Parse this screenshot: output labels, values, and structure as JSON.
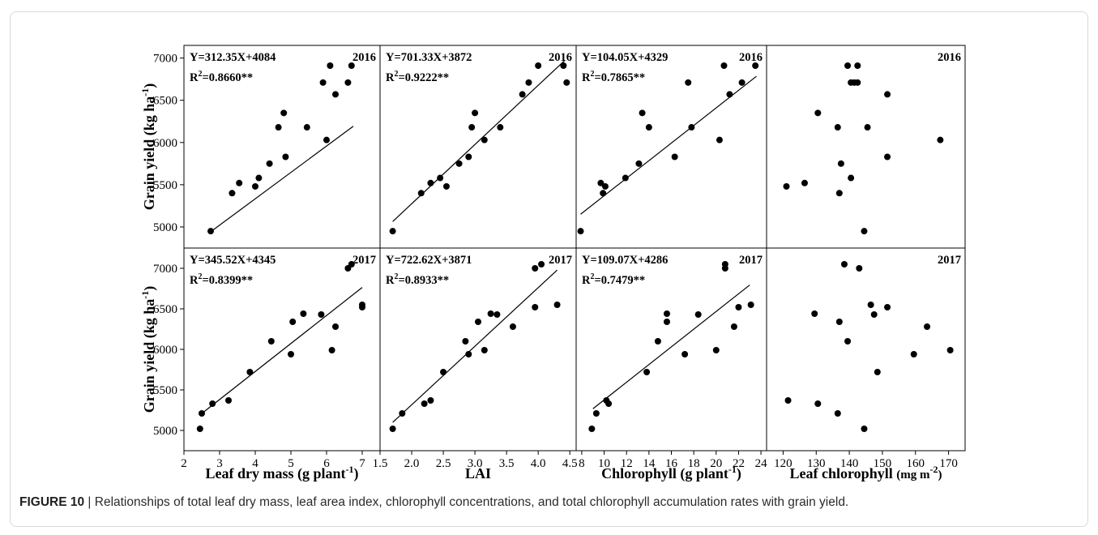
{
  "figure": {
    "caption_label": "FIGURE 10",
    "caption_separator": " | ",
    "caption_text": "Relationships of total leaf dry mass, leaf area index, chlorophyll concentrations, and total chlorophyll accumulation rates with grain yield."
  },
  "chart_data": [
    {
      "type": "scatter",
      "panel": "Leaf dry mass 2016",
      "year": "2016",
      "xlabel": "Leaf dry mass (g plant-1)",
      "ylabel": "Grain yield (kg ha-1)",
      "xlim": [
        2,
        7.5
      ],
      "ylim": [
        4750,
        7150
      ],
      "equation": "Y=312.35X+4084",
      "r2": "R2=0.8660**",
      "fit": {
        "slope": 312.35,
        "intercept": 4084,
        "x_range": [
          2.75,
          6.75
        ]
      },
      "x": [
        2.75,
        3.35,
        3.55,
        4.0,
        4.1,
        4.4,
        4.65,
        4.8,
        4.85,
        5.45,
        5.9,
        6.0,
        6.1,
        6.25,
        6.6,
        6.7
      ],
      "y": [
        4950,
        5400,
        5520,
        5480,
        5580,
        5750,
        6180,
        6350,
        5830,
        6180,
        6710,
        6030,
        6910,
        6570,
        6710,
        6910
      ]
    },
    {
      "type": "scatter",
      "panel": "LAI 2016",
      "year": "2016",
      "xlabel": "LAI",
      "ylabel": "Grain yield (kg ha-1)",
      "xlim": [
        1.5,
        4.6
      ],
      "ylim": [
        4750,
        7150
      ],
      "equation": "Y=701.33X+3872",
      "r2": "R2=0.9222**",
      "fit": {
        "slope": 701.33,
        "intercept": 3872,
        "x_range": [
          1.7,
          4.42
        ]
      },
      "x": [
        1.7,
        2.15,
        2.3,
        2.45,
        2.55,
        2.75,
        2.9,
        2.95,
        3.0,
        3.15,
        3.4,
        3.75,
        3.85,
        4.0,
        4.4,
        4.45
      ],
      "y": [
        4950,
        5400,
        5520,
        5580,
        5480,
        5750,
        5830,
        6180,
        6350,
        6030,
        6180,
        6570,
        6710,
        6910,
        6910,
        6710
      ]
    },
    {
      "type": "scatter",
      "panel": "Chlorophyll 2016",
      "year": "2016",
      "xlabel": "Chlorophyll (g plant-1)",
      "ylabel": "Grain yield (kg ha-1)",
      "xlim": [
        7.5,
        24.5
      ],
      "ylim": [
        4750,
        7150
      ],
      "equation": "Y=104.05X+4329",
      "r2": "R2=0.7865**",
      "fit": {
        "slope": 104.05,
        "intercept": 4329,
        "x_range": [
          7.9,
          23.6
        ]
      },
      "x": [
        7.9,
        9.7,
        9.9,
        10.1,
        11.9,
        13.1,
        13.4,
        14.0,
        16.3,
        17.5,
        17.8,
        20.3,
        20.7,
        21.2,
        22.3,
        23.5
      ],
      "y": [
        4950,
        5520,
        5400,
        5480,
        5580,
        5750,
        6350,
        6180,
        5830,
        6710,
        6180,
        6030,
        6910,
        6570,
        6710,
        6910
      ]
    },
    {
      "type": "scatter",
      "panel": "Leaf chlorophyll 2016",
      "year": "2016",
      "xlabel": "Leaf chlorophyll (mg m-2)",
      "ylabel": "Grain yield (kg ha-1)",
      "xlim": [
        115,
        175
      ],
      "ylim": [
        4750,
        7150
      ],
      "x": [
        121,
        126.5,
        130.5,
        136.5,
        137,
        137.5,
        139.5,
        140.5,
        140.5,
        141.5,
        142.5,
        142.5,
        144.5,
        145.5,
        151.5,
        151.5,
        167.5
      ],
      "y": [
        5480,
        5520,
        6350,
        6180,
        5400,
        5750,
        6910,
        5580,
        6710,
        6710,
        6910,
        6710,
        4950,
        6180,
        6570,
        5830,
        6030
      ]
    },
    {
      "type": "scatter",
      "panel": "Leaf dry mass 2017",
      "year": "2017",
      "xlabel": "Leaf dry mass (g plant-1)",
      "ylabel": "Grain yield (kg ha-1)",
      "xlim": [
        2,
        7.5
      ],
      "ylim": [
        4750,
        7250
      ],
      "equation": "Y=345.52X+4345",
      "r2": "R2=0.8399**",
      "fit": {
        "slope": 345.52,
        "intercept": 4345,
        "x_range": [
          2.45,
          7.0
        ]
      },
      "x": [
        2.45,
        2.5,
        2.8,
        3.25,
        3.85,
        4.45,
        5.0,
        5.05,
        5.35,
        5.85,
        6.15,
        6.25,
        6.6,
        6.7,
        7.0,
        7.0
      ],
      "y": [
        5020,
        5210,
        5330,
        5370,
        5720,
        6100,
        5940,
        6340,
        6440,
        6430,
        5990,
        6280,
        7000,
        7050,
        6550,
        6520
      ]
    },
    {
      "type": "scatter",
      "panel": "LAI 2017",
      "year": "2017",
      "xlabel": "LAI",
      "ylabel": "Grain yield (kg ha-1)",
      "xlim": [
        1.5,
        4.6
      ],
      "ylim": [
        4750,
        7250
      ],
      "equation": "Y=722.62X+3871",
      "r2": "R2=0.8933**",
      "fit": {
        "slope": 722.62,
        "intercept": 3871,
        "x_range": [
          1.7,
          4.3
        ]
      },
      "x": [
        1.7,
        1.85,
        2.2,
        2.3,
        2.5,
        2.85,
        2.9,
        3.05,
        3.15,
        3.25,
        3.35,
        3.6,
        3.95,
        3.95,
        4.05,
        4.3
      ],
      "y": [
        5020,
        5210,
        5330,
        5370,
        5720,
        6100,
        5940,
        6340,
        5990,
        6440,
        6430,
        6280,
        7000,
        6520,
        7050,
        6550
      ]
    },
    {
      "type": "scatter",
      "panel": "Chlorophyll 2017",
      "year": "2017",
      "xlabel": "Chlorophyll (g plant-1)",
      "ylabel": "Grain yield (kg ha-1)",
      "xlim": [
        7.5,
        24.5
      ],
      "ylim": [
        4750,
        7250
      ],
      "equation": "Y=109.07X+4286",
      "r2": "R2=0.7479**",
      "fit": {
        "slope": 109.07,
        "intercept": 4286,
        "x_range": [
          9.0,
          23.0
        ]
      },
      "x": [
        8.9,
        9.3,
        10.2,
        10.4,
        13.8,
        14.8,
        15.6,
        15.6,
        17.2,
        18.4,
        20.0,
        20.8,
        20.8,
        21.6,
        22.0,
        23.1
      ],
      "y": [
        5020,
        5210,
        5370,
        5330,
        5720,
        6100,
        6440,
        6340,
        5940,
        6430,
        5990,
        7000,
        7050,
        6280,
        6520,
        6550
      ]
    },
    {
      "type": "scatter",
      "panel": "Leaf chlorophyll 2017",
      "year": "2017",
      "xlabel": "Leaf chlorophyll (mg m-2)",
      "ylabel": "Grain yield (kg ha-1)",
      "xlim": [
        115,
        175
      ],
      "ylim": [
        4750,
        7250
      ],
      "x": [
        121.5,
        129.5,
        130.5,
        136.5,
        137,
        138.5,
        139.5,
        143,
        144.5,
        146.5,
        147.5,
        148.5,
        151.5,
        159.5,
        163.5,
        170.5
      ],
      "y": [
        5370,
        6440,
        5330,
        5210,
        6340,
        7050,
        6100,
        7000,
        5020,
        6550,
        6430,
        5720,
        6520,
        5940,
        6280,
        5990
      ]
    }
  ],
  "axes": {
    "ylabel": "Grain yield (kg ha",
    "ylabel_sup": "-1",
    "ylabel_tail": ")",
    "y_ticks": [
      "5000",
      "5500",
      "6000",
      "6500",
      "7000"
    ],
    "x_ticks_leaf_dry_mass": [
      "2",
      "3",
      "4",
      "5",
      "6",
      "7"
    ],
    "x_ticks_lai": [
      "1.5",
      "2.0",
      "2.5",
      "3.0",
      "3.5",
      "4.0",
      "4.5"
    ],
    "x_ticks_chlorophyll": [
      "8",
      "10",
      "12",
      "14",
      "16",
      "18",
      "20",
      "22",
      "24"
    ],
    "x_ticks_leaf_chlorophyll": [
      "120",
      "130",
      "140",
      "150",
      "160",
      "170"
    ],
    "xlabels": [
      {
        "main": "Leaf dry mass (g plant",
        "sup": "-1",
        "tail": ")"
      },
      {
        "main": "LAI",
        "sup": "",
        "tail": ""
      },
      {
        "main": "Chlorophyll (g plant",
        "sup": "-1",
        "tail": ")"
      },
      {
        "main": "Leaf chlorophyll ",
        "unit": "(mg m",
        "sup": "-2",
        "tail": ")"
      }
    ]
  },
  "colors": {
    "point": "#000000",
    "line": "#000000",
    "caption_label": "#1f1f1f",
    "caption_text": "#2b2b2b"
  }
}
